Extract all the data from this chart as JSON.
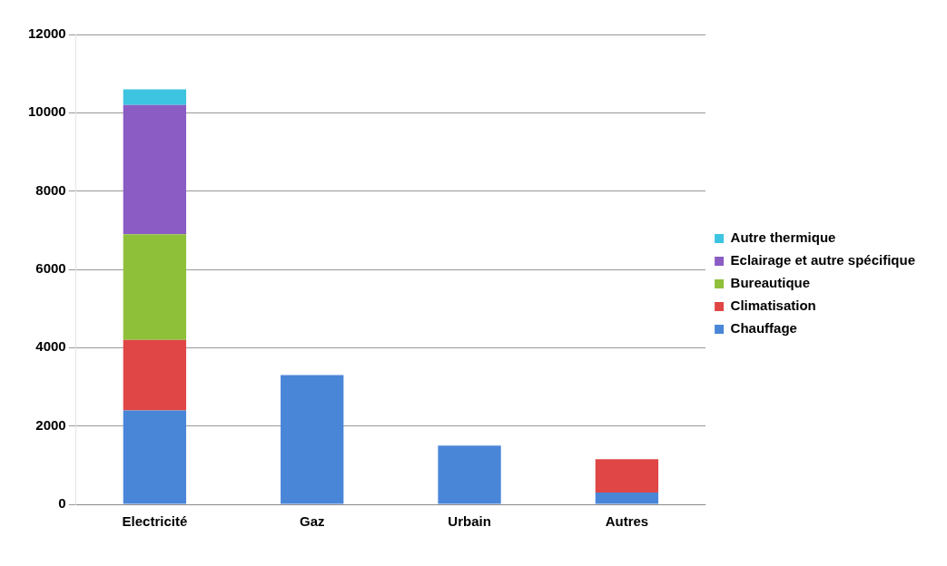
{
  "chart_data": {
    "type": "bar",
    "stacked": true,
    "categories": [
      "Electricité",
      "Gaz",
      "Urbain",
      "Autres"
    ],
    "series": [
      {
        "name": "Chauffage",
        "color": "#4a86d8",
        "values": [
          2400,
          3300,
          1500,
          300
        ]
      },
      {
        "name": "Climatisation",
        "color": "#e04646",
        "values": [
          1800,
          0,
          0,
          850
        ]
      },
      {
        "name": "Bureautique",
        "color": "#8fc03a",
        "values": [
          2700,
          0,
          0,
          0
        ]
      },
      {
        "name": "Eclairage et autre spécifique",
        "color": "#8a5cc4",
        "values": [
          3300,
          0,
          0,
          0
        ]
      },
      {
        "name": "Autre thermique",
        "color": "#3cc4e0",
        "values": [
          400,
          0,
          0,
          0
        ]
      }
    ],
    "ylim": [
      0,
      12000
    ],
    "yticks": [
      0,
      2000,
      4000,
      6000,
      8000,
      10000,
      12000
    ],
    "grid": "y",
    "legend": "right"
  }
}
